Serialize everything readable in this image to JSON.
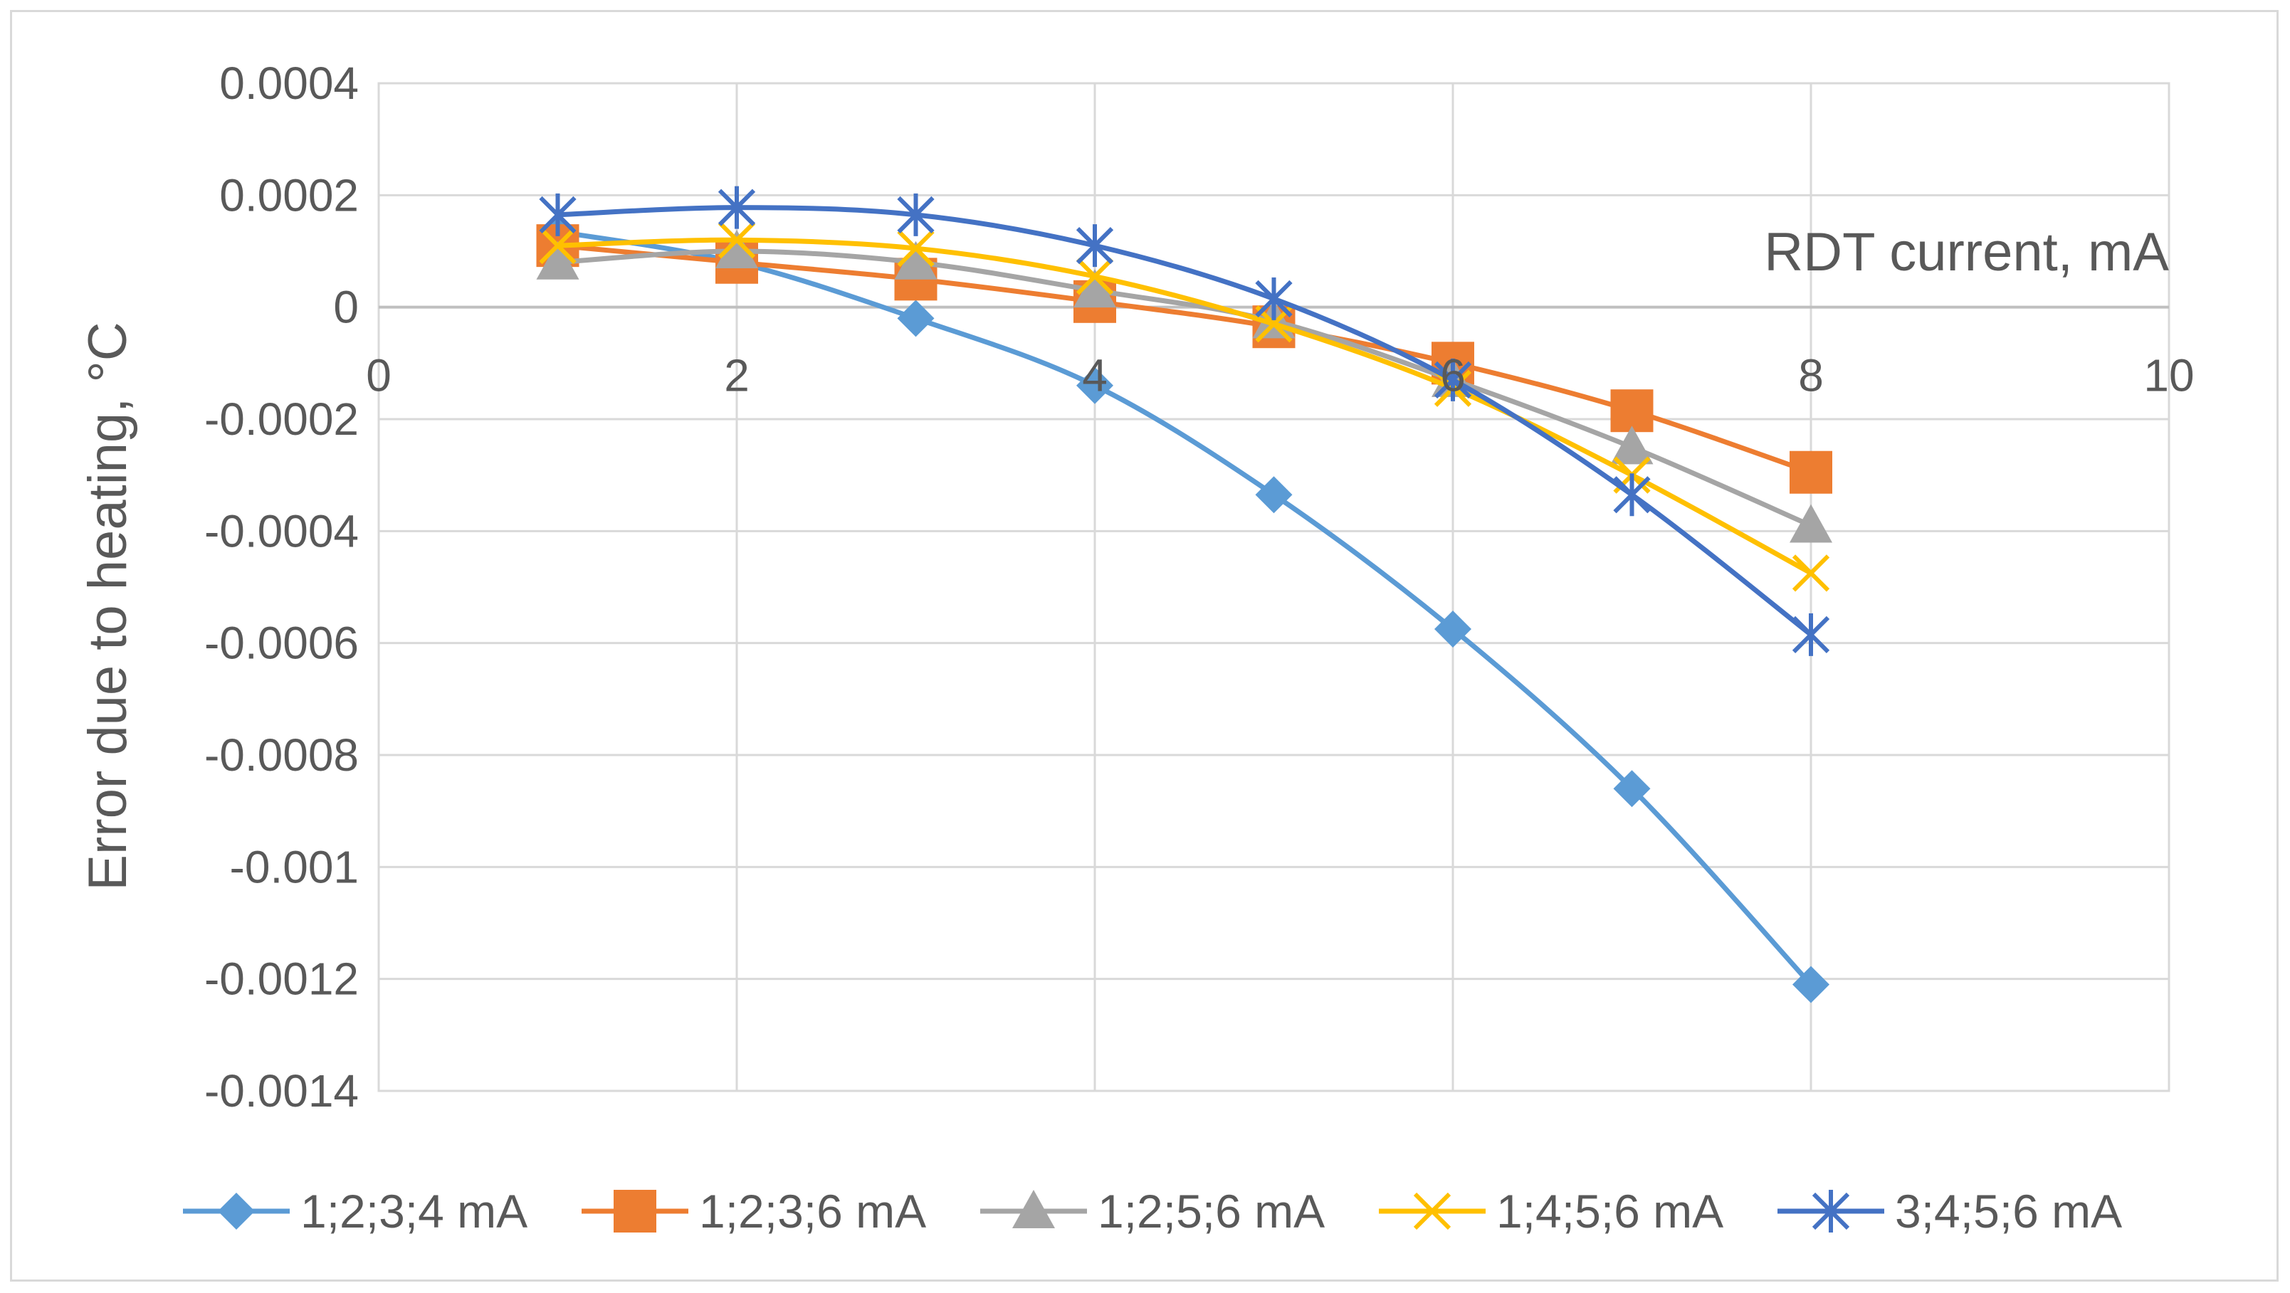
{
  "chart_data": {
    "type": "line",
    "title": "",
    "xlabel": "RDT current, mA",
    "ylabel": "Error due to heating, °C",
    "xlim": [
      0,
      10
    ],
    "ylim": [
      -0.0014,
      0.0004
    ],
    "x_ticks": [
      "0",
      "2",
      "4",
      "6",
      "8",
      "10"
    ],
    "y_ticks": [
      "0.0004",
      "0.0002",
      "0",
      "-0.0002",
      "-0.0004",
      "-0.0006",
      "-0.0008",
      "-0.001",
      "-0.0012",
      "-0.0014"
    ],
    "grid": true,
    "legend_position": "bottom",
    "x": [
      1,
      2,
      3,
      4,
      5,
      6,
      7,
      8
    ],
    "series": [
      {
        "name": "1;2;3;4 mA",
        "color": "#5b9bd5",
        "marker": "diamond",
        "values": [
          0.000135,
          8e-05,
          -2e-05,
          -0.00014,
          -0.000335,
          -0.000575,
          -0.00086,
          -0.00121
        ]
      },
      {
        "name": "1;2;3;6 mA",
        "color": "#ed7d31",
        "marker": "square",
        "values": [
          0.00011,
          8e-05,
          5e-05,
          1e-05,
          -3.5e-05,
          -0.0001,
          -0.000185,
          -0.000295
        ]
      },
      {
        "name": "1;2;5;6 mA",
        "color": "#a5a5a5",
        "marker": "triangle",
        "values": [
          8e-05,
          0.0001,
          8e-05,
          3e-05,
          -2.5e-05,
          -0.00013,
          -0.00025,
          -0.00039
        ]
      },
      {
        "name": "1;4;5;6 mA",
        "color": "#ffc000",
        "marker": "x",
        "values": [
          0.00011,
          0.00012,
          0.000105,
          5.5e-05,
          -3e-05,
          -0.000145,
          -0.0003,
          -0.000475
        ]
      },
      {
        "name": "3;4;5;6 mA",
        "color": "#4472c4",
        "marker": "star",
        "values": [
          0.000165,
          0.000178,
          0.000165,
          0.00011,
          1.5e-05,
          -0.00013,
          -0.000335,
          -0.000585
        ]
      }
    ]
  }
}
